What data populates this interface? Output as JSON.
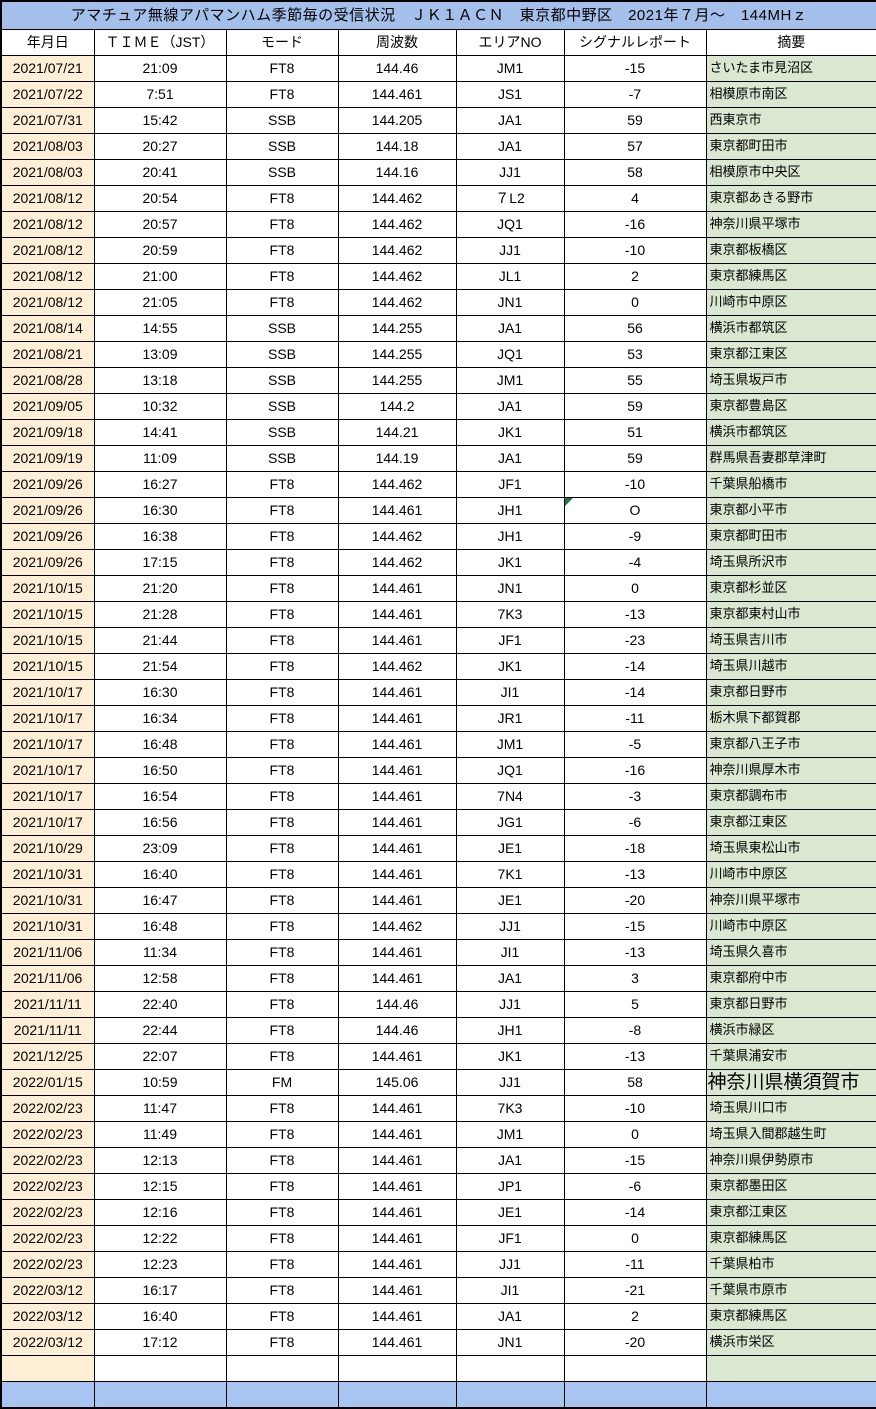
{
  "title": "アマチュア無線アパマンハム季節毎の受信状況　ＪＫ１ＡＣＮ　東京都中野区　2021年７月～　144MHｚ",
  "columns": [
    "年月日",
    "ＴＩＭＥ（JST）",
    "モード",
    "周波数",
    "エリアNO",
    "シグナルレポート",
    "摘要"
  ],
  "rows": [
    [
      "2021/07/21",
      "21:09",
      "FT8",
      "144.46",
      "JM1",
      "-15",
      "さいたま市見沼区"
    ],
    [
      "2021/07/22",
      "7:51",
      "FT8",
      "144.461",
      "JS1",
      "-7",
      "相模原市南区"
    ],
    [
      "2021/07/31",
      "15:42",
      "SSB",
      "144.205",
      "JA1",
      "59",
      "西東京市"
    ],
    [
      "2021/08/03",
      "20:27",
      "SSB",
      "144.18",
      "JA1",
      "57",
      "東京都町田市"
    ],
    [
      "2021/08/03",
      "20:41",
      "SSB",
      "144.16",
      "JJ1",
      "58",
      "相模原市中央区"
    ],
    [
      "2021/08/12",
      "20:54",
      "FT8",
      "144.462",
      "７L2",
      "4",
      "東京都あきる野市"
    ],
    [
      "2021/08/12",
      "20:57",
      "FT8",
      "144.462",
      "JQ1",
      "-16",
      "神奈川県平塚市"
    ],
    [
      "2021/08/12",
      "20:59",
      "FT8",
      "144.462",
      "JJ1",
      "-10",
      "東京都板橋区"
    ],
    [
      "2021/08/12",
      "21:00",
      "FT8",
      "144.462",
      "JL1",
      "2",
      "東京都練馬区"
    ],
    [
      "2021/08/12",
      "21:05",
      "FT8",
      "144.462",
      "JN1",
      "0",
      "川崎市中原区"
    ],
    [
      "2021/08/14",
      "14:55",
      "SSB",
      "144.255",
      "JA1",
      "56",
      "横浜市都筑区"
    ],
    [
      "2021/08/21",
      "13:09",
      "SSB",
      "144.255",
      "JQ1",
      "53",
      "東京都江東区"
    ],
    [
      "2021/08/28",
      "13:18",
      "SSB",
      "144.255",
      "JM1",
      "55",
      "埼玉県坂戸市"
    ],
    [
      "2021/09/05",
      "10:32",
      "SSB",
      "144.2",
      "JA1",
      "59",
      "東京都豊島区"
    ],
    [
      "2021/09/18",
      "14:41",
      "SSB",
      "144.21",
      "JK1",
      "51",
      "横浜市都筑区"
    ],
    [
      "2021/09/19",
      "11:09",
      "SSB",
      "144.19",
      "JA1",
      "59",
      "群馬県吾妻郡草津町"
    ],
    [
      "2021/09/26",
      "16:27",
      "FT8",
      "144.462",
      "JF1",
      "-10",
      "千葉県船橋市"
    ],
    [
      "2021/09/26",
      "16:30",
      "FT8",
      "144.461",
      "JH1",
      "O",
      "東京都小平市"
    ],
    [
      "2021/09/26",
      "16:38",
      "FT8",
      "144.462",
      "JH1",
      "-9",
      "東京都町田市"
    ],
    [
      "2021/09/26",
      "17:15",
      "FT8",
      "144.462",
      "JK1",
      "-4",
      "埼玉県所沢市"
    ],
    [
      "2021/10/15",
      "21:20",
      "FT8",
      "144.461",
      "JN1",
      "0",
      "東京都杉並区"
    ],
    [
      "2021/10/15",
      "21:28",
      "FT8",
      "144.461",
      "7K3",
      "-13",
      "東京都東村山市"
    ],
    [
      "2021/10/15",
      "21:44",
      "FT8",
      "144.461",
      "JF1",
      "-23",
      "埼玉県吉川市"
    ],
    [
      "2021/10/15",
      "21:54",
      "FT8",
      "144.462",
      "JK1",
      "-14",
      "埼玉県川越市"
    ],
    [
      "2021/10/17",
      "16:30",
      "FT8",
      "144.461",
      "JI1",
      "-14",
      "東京都日野市"
    ],
    [
      "2021/10/17",
      "16:34",
      "FT8",
      "144.461",
      "JR1",
      "-11",
      "栃木県下都賀郡"
    ],
    [
      "2021/10/17",
      "16:48",
      "FT8",
      "144.461",
      "JM1",
      "-5",
      "東京都八王子市"
    ],
    [
      "2021/10/17",
      "16:50",
      "FT8",
      "144.461",
      "JQ1",
      "-16",
      "神奈川県厚木市"
    ],
    [
      "2021/10/17",
      "16:54",
      "FT8",
      "144.461",
      "7N4",
      "-3",
      "東京都調布市"
    ],
    [
      "2021/10/17",
      "16:56",
      "FT8",
      "144.461",
      "JG1",
      "-6",
      "東京都江東区"
    ],
    [
      "2021/10/29",
      "23:09",
      "FT8",
      "144.461",
      "JE1",
      "-18",
      "埼玉県東松山市"
    ],
    [
      "2021/10/31",
      "16:40",
      "FT8",
      "144.461",
      "7K1",
      "-13",
      "川崎市中原区"
    ],
    [
      "2021/10/31",
      "16:47",
      "FT8",
      "144.461",
      "JE1",
      "-20",
      "神奈川県平塚市"
    ],
    [
      "2021/10/31",
      "16:48",
      "FT8",
      "144.462",
      "JJ1",
      "-15",
      "川崎市中原区"
    ],
    [
      "2021/11/06",
      "11:34",
      "FT8",
      "144.461",
      "JI1",
      "-13",
      "埼玉県久喜市"
    ],
    [
      "2021/11/06",
      "12:58",
      "FT8",
      "144.461",
      "JA1",
      "3",
      "東京都府中市"
    ],
    [
      "2021/11/11",
      "22:40",
      "FT8",
      "144.46",
      "JJ1",
      "5",
      "東京都日野市"
    ],
    [
      "2021/11/11",
      "22:44",
      "FT8",
      "144.46",
      "JH1",
      "-8",
      "横浜市緑区"
    ],
    [
      "2021/12/25",
      "22:07",
      "FT8",
      "144.461",
      "JK1",
      "-13",
      "千葉県浦安市"
    ],
    [
      "2022/01/15",
      "10:59",
      "FM",
      "145.06",
      "JJ1",
      "58",
      "神奈川県横須賀市"
    ],
    [
      "2022/02/23",
      "11:47",
      "FT8",
      "144.461",
      "7K3",
      "-10",
      "埼玉県川口市"
    ],
    [
      "2022/02/23",
      "11:49",
      "FT8",
      "144.461",
      "JM1",
      "0",
      "埼玉県入間郡越生町"
    ],
    [
      "2022/02/23",
      "12:13",
      "FT8",
      "144.461",
      "JA1",
      "-15",
      "神奈川県伊勢原市"
    ],
    [
      "2022/02/23",
      "12:15",
      "FT8",
      "144.461",
      "JP1",
      "-6",
      "東京都墨田区"
    ],
    [
      "2022/02/23",
      "12:16",
      "FT8",
      "144.461",
      "JE1",
      "-14",
      "東京都江東区"
    ],
    [
      "2022/02/23",
      "12:22",
      "FT8",
      "144.461",
      "JF1",
      "0",
      "東京都練馬区"
    ],
    [
      "2022/02/23",
      "12:23",
      "FT8",
      "144.461",
      "JJ1",
      "-11",
      "千葉県柏市"
    ],
    [
      "2022/03/12",
      "16:17",
      "FT8",
      "144.461",
      "JI1",
      "-21",
      "千葉県市原市"
    ],
    [
      "2022/03/12",
      "16:40",
      "FT8",
      "144.461",
      "JA1",
      "2",
      "東京都練馬区"
    ],
    [
      "2022/03/12",
      "17:12",
      "FT8",
      "144.461",
      "JN1",
      "-20",
      "横浜市栄区"
    ]
  ],
  "flagged_signal_rows": [
    17
  ],
  "large_summary_rows": [
    39
  ],
  "colors": {
    "title_bg": "#a4c0ea",
    "date_bg": "#fcefd5",
    "summary_bg": "#dae8d2",
    "footer_bg": "#a8c4f0",
    "flag_triangle": "#1f7244",
    "border": "#000000"
  }
}
